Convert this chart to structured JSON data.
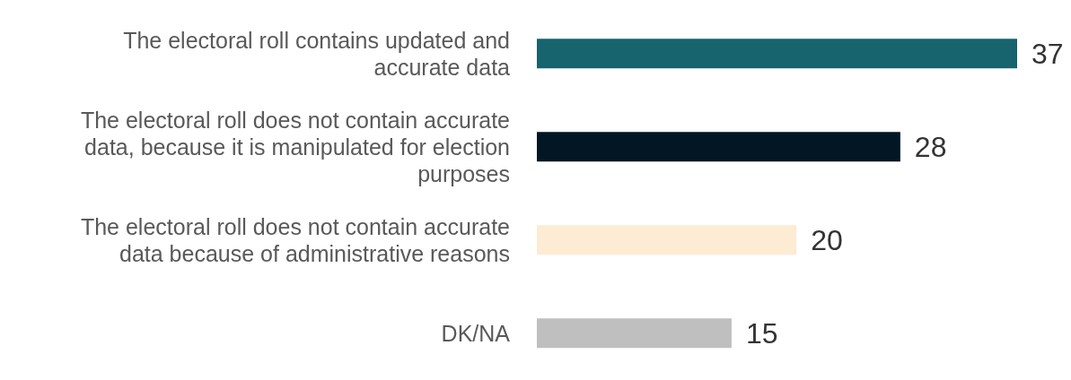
{
  "chart_data": {
    "type": "bar",
    "orientation": "horizontal",
    "categories": [
      "The electoral roll contains updated and accurate data",
      "The electoral roll does not contain accurate data, because it is manipulated for election purposes",
      "The electoral roll does not contain accurate data because of administrative reasons",
      "DK/NA"
    ],
    "values": [
      37,
      28,
      20,
      15
    ],
    "colors": [
      "#17636e",
      "#021624",
      "#fdebd3",
      "#bfbfbf"
    ],
    "data_labels": true,
    "grid": false,
    "legend": false
  }
}
